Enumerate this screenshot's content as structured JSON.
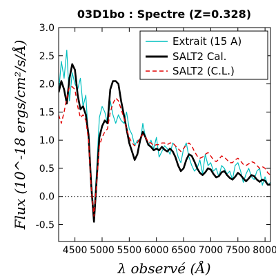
{
  "chart_data": {
    "type": "line",
    "title": "03D1bo : Spectre (Z=0.328)",
    "xlabel": "λ observé (Å)",
    "ylabel": "Flux (10^-18 ergs/cm²/s/Å)",
    "xlim": [
      4200,
      8100
    ],
    "ylim": [
      -0.8,
      3.0
    ],
    "xticks": [
      4500,
      5000,
      5500,
      6000,
      6500,
      7000,
      7500,
      8000
    ],
    "yticks": [
      -0.5,
      0.0,
      0.5,
      1.0,
      1.5,
      2.0,
      2.5,
      3.0
    ],
    "xtick_labels": [
      "4500",
      "5000",
      "5500",
      "6000",
      "6500",
      "7000",
      "7500",
      "8000"
    ],
    "ytick_labels": [
      "-0.5",
      "0.0",
      "0.5",
      "1.0",
      "1.5",
      "2.0",
      "2.5",
      "3.0"
    ],
    "zero_line": "dotted",
    "legend_position": "top-right",
    "series": [
      {
        "name": "Extrait (15 A)",
        "color": "#00bfbf",
        "style": "solid",
        "x": [
          4200,
          4250,
          4300,
          4350,
          4400,
          4450,
          4500,
          4550,
          4600,
          4650,
          4700,
          4750,
          4800,
          4850,
          4900,
          4950,
          5000,
          5050,
          5100,
          5150,
          5200,
          5250,
          5300,
          5350,
          5400,
          5450,
          5500,
          5550,
          5600,
          5650,
          5700,
          5750,
          5800,
          5850,
          5900,
          5950,
          6000,
          6050,
          6100,
          6150,
          6200,
          6250,
          6300,
          6350,
          6400,
          6450,
          6500,
          6550,
          6600,
          6650,
          6700,
          6750,
          6800,
          6850,
          6900,
          6950,
          7000,
          7050,
          7100,
          7150,
          7200,
          7250,
          7300,
          7350,
          7400,
          7450,
          7500,
          7550,
          7600,
          7650,
          7700,
          7750,
          7800,
          7850,
          7900,
          7950,
          8000,
          8050,
          8100
        ],
        "y": [
          1.85,
          2.4,
          2.1,
          2.6,
          1.7,
          2.2,
          2.0,
          1.9,
          2.1,
          1.6,
          1.8,
          1.0,
          0.1,
          -0.3,
          0.5,
          1.4,
          1.6,
          1.5,
          1.3,
          1.7,
          1.45,
          1.3,
          1.45,
          1.35,
          1.3,
          1.5,
          1.2,
          1.1,
          0.9,
          1.0,
          0.95,
          1.3,
          1.05,
          0.9,
          1.0,
          0.85,
          1.05,
          0.7,
          0.8,
          0.9,
          0.85,
          0.75,
          0.95,
          0.9,
          0.7,
          0.6,
          0.85,
          0.95,
          0.7,
          0.55,
          0.45,
          0.5,
          0.65,
          0.4,
          0.75,
          0.55,
          0.6,
          0.45,
          0.5,
          0.35,
          0.55,
          0.5,
          0.4,
          0.45,
          0.3,
          0.55,
          0.6,
          0.45,
          0.25,
          0.4,
          0.5,
          0.35,
          0.3,
          0.45,
          0.5,
          0.2,
          0.35,
          0.2,
          0.25
        ]
      },
      {
        "name": "SALT2 Cal.",
        "color": "#000000",
        "style": "solid",
        "x": [
          4200,
          4250,
          4300,
          4350,
          4400,
          4450,
          4500,
          4550,
          4600,
          4650,
          4700,
          4750,
          4800,
          4850,
          4900,
          4950,
          5000,
          5050,
          5100,
          5150,
          5200,
          5250,
          5300,
          5350,
          5400,
          5450,
          5500,
          5550,
          5600,
          5650,
          5700,
          5750,
          5800,
          5850,
          5900,
          5950,
          6000,
          6050,
          6100,
          6150,
          6200,
          6250,
          6300,
          6350,
          6400,
          6450,
          6500,
          6550,
          6600,
          6650,
          6700,
          6750,
          6800,
          6850,
          6900,
          6950,
          7000,
          7050,
          7100,
          7150,
          7200,
          7250,
          7300,
          7350,
          7400,
          7450,
          7500,
          7550,
          7600,
          7650,
          7700,
          7750,
          7800,
          7850,
          7900,
          7950,
          8000,
          8050,
          8100
        ],
        "y": [
          1.85,
          2.05,
          1.9,
          1.65,
          2.1,
          2.35,
          2.25,
          1.8,
          1.55,
          1.6,
          1.45,
          1.1,
          0.2,
          -0.45,
          0.3,
          1.05,
          1.25,
          1.35,
          1.3,
          1.9,
          2.05,
          2.05,
          2.0,
          1.7,
          1.45,
          1.2,
          0.95,
          0.8,
          0.65,
          0.75,
          1.0,
          1.15,
          1.05,
          0.92,
          0.88,
          0.82,
          0.85,
          0.82,
          0.88,
          0.83,
          0.8,
          0.85,
          0.8,
          0.7,
          0.55,
          0.45,
          0.5,
          0.65,
          0.75,
          0.72,
          0.62,
          0.5,
          0.42,
          0.38,
          0.43,
          0.5,
          0.48,
          0.4,
          0.34,
          0.36,
          0.43,
          0.45,
          0.38,
          0.33,
          0.3,
          0.35,
          0.42,
          0.38,
          0.32,
          0.27,
          0.32,
          0.38,
          0.36,
          0.3,
          0.26,
          0.3,
          0.28,
          0.21,
          0.21
        ]
      },
      {
        "name": "SALT2 (C.L.)",
        "color": "#e00000",
        "style": "dashed",
        "x": [
          4200,
          4250,
          4300,
          4350,
          4400,
          4450,
          4500,
          4550,
          4600,
          4650,
          4700,
          4750,
          4800,
          4850,
          4900,
          4950,
          5000,
          5050,
          5100,
          5150,
          5200,
          5250,
          5300,
          5350,
          5400,
          5450,
          5500,
          5550,
          5600,
          5650,
          5700,
          5750,
          5800,
          5850,
          5900,
          5950,
          6000,
          6050,
          6100,
          6150,
          6200,
          6250,
          6300,
          6350,
          6400,
          6450,
          6500,
          6550,
          6600,
          6650,
          6700,
          6750,
          6800,
          6850,
          6900,
          6950,
          7000,
          7050,
          7100,
          7150,
          7200,
          7250,
          7300,
          7350,
          7400,
          7450,
          7500,
          7550,
          7600,
          7650,
          7700,
          7750,
          7800,
          7850,
          7900,
          7950,
          8000,
          8050,
          8100
        ],
        "y": [
          1.45,
          1.3,
          1.5,
          1.75,
          1.95,
          1.95,
          1.9,
          1.6,
          1.4,
          1.45,
          1.35,
          1.0,
          0.15,
          -0.35,
          0.25,
          0.9,
          1.05,
          1.15,
          1.2,
          1.5,
          1.65,
          1.75,
          1.7,
          1.55,
          1.4,
          1.2,
          1.05,
          0.95,
          0.9,
          0.95,
          1.05,
          1.1,
          1.05,
          0.97,
          0.95,
          0.9,
          0.92,
          0.92,
          0.95,
          0.95,
          0.92,
          0.95,
          0.95,
          0.9,
          0.85,
          0.8,
          0.85,
          0.92,
          0.95,
          0.9,
          0.8,
          0.72,
          0.68,
          0.7,
          0.75,
          0.78,
          0.72,
          0.65,
          0.62,
          0.66,
          0.72,
          0.7,
          0.65,
          0.6,
          0.6,
          0.65,
          0.68,
          0.63,
          0.57,
          0.55,
          0.58,
          0.62,
          0.6,
          0.55,
          0.5,
          0.53,
          0.5,
          0.42,
          0.38
        ]
      }
    ]
  }
}
